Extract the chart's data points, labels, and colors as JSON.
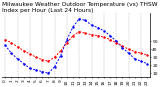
{
  "title": "Milwaukee Weather Outdoor Temperature (vs) THSW Index per Hour (Last 24 Hours)",
  "hours": [
    0,
    1,
    2,
    3,
    4,
    5,
    6,
    7,
    8,
    9,
    10,
    11,
    12,
    13,
    14,
    15,
    16,
    17,
    18,
    19,
    20,
    21,
    22,
    23
  ],
  "temp": [
    52,
    48,
    43,
    38,
    34,
    30,
    27,
    25,
    30,
    38,
    48,
    57,
    62,
    60,
    58,
    57,
    55,
    52,
    48,
    44,
    40,
    37,
    35,
    33
  ],
  "thsw": [
    45,
    35,
    28,
    22,
    16,
    14,
    12,
    10,
    18,
    32,
    52,
    68,
    78,
    76,
    70,
    67,
    63,
    57,
    50,
    42,
    35,
    28,
    25,
    22
  ],
  "temp_color": "#ff0000",
  "thsw_color": "#0000ff",
  "ylim_min": 5,
  "ylim_max": 85,
  "yticks": [
    10,
    20,
    30,
    40,
    50
  ],
  "background": "#ffffff",
  "grid_color": "#888888",
  "title_fontsize": 4.2,
  "tick_fontsize": 3.2,
  "line_width": 0.7,
  "marker_size": 1.5
}
